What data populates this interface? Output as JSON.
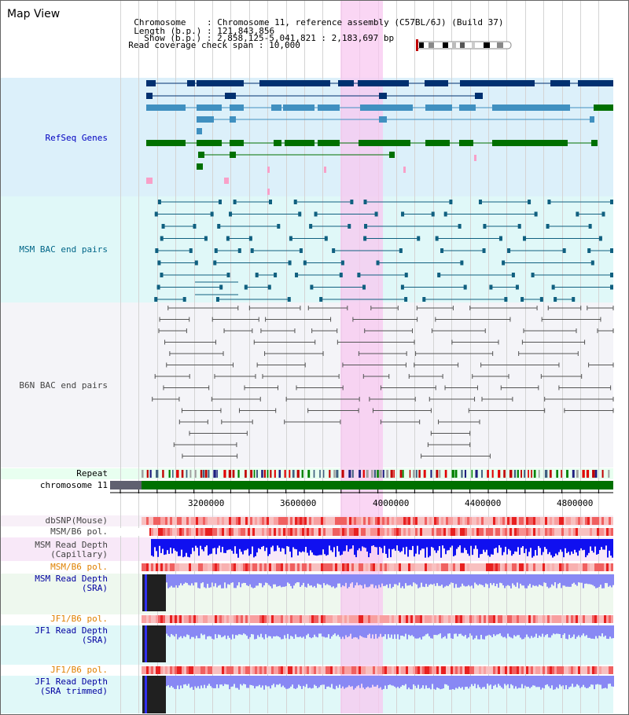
{
  "view_title": "Map View",
  "header": {
    "chromosome_key": "Chromosome",
    "chromosome_value": "Chromosome 11, reference assembly (C57BL/6J) (Build 37)",
    "length_key": "Length (b.p.)",
    "length_value": "121,843,856",
    "show_key": "Show (b.p.)",
    "show_value": "2,858,125-5,041,821 : 2,183,697 bp",
    "coverage_key": "Read coverage check span",
    "coverage_value": "10,000"
  },
  "tracks": {
    "refseq": "RefSeq Genes",
    "msm_bac": "MSM BAC end pairs",
    "b6n_bac": "B6N BAC end pairs",
    "repeat": "Repeat",
    "chromosome": "chromosome 11",
    "dbsnp": "dbSNP(Mouse)",
    "msm_b6_pol_1": "MSM/B6 pol.",
    "msm_depth_cap_1": "MSM Read Depth",
    "msm_depth_cap_2": "(Capillary)",
    "msm_b6_pol_2": "MSM/B6 pol.",
    "msm_depth_sra_1": "MSM Read Depth",
    "msm_depth_sra_2": "(SRA)",
    "jf1_b6_pol_1": "JF1/B6 pol.",
    "jf1_depth_sra_1": "JF1 Read Depth",
    "jf1_depth_sra_2": "(SRA)",
    "jf1_b6_pol_2": "JF1/B6 pol.",
    "jf1_depth_trim_1": "JF1 Read Depth",
    "jf1_depth_trim_2": "(SRA trimmed)"
  },
  "axis_ticks": [
    "3200000",
    "3600000",
    "4000000",
    "4400000",
    "4800000"
  ],
  "colors": {
    "refseq_bg": "#dcf0fa",
    "msm_bac_bg": "#e0f8f8",
    "b6n_bac_bg": "#f4f4f8",
    "highlight": "#f8c8f0",
    "refseq_label": "#0000c0",
    "msm_label": "#006688",
    "pol_label_orange": "#e08000",
    "depth_label_blue": "#0000a0"
  }
}
